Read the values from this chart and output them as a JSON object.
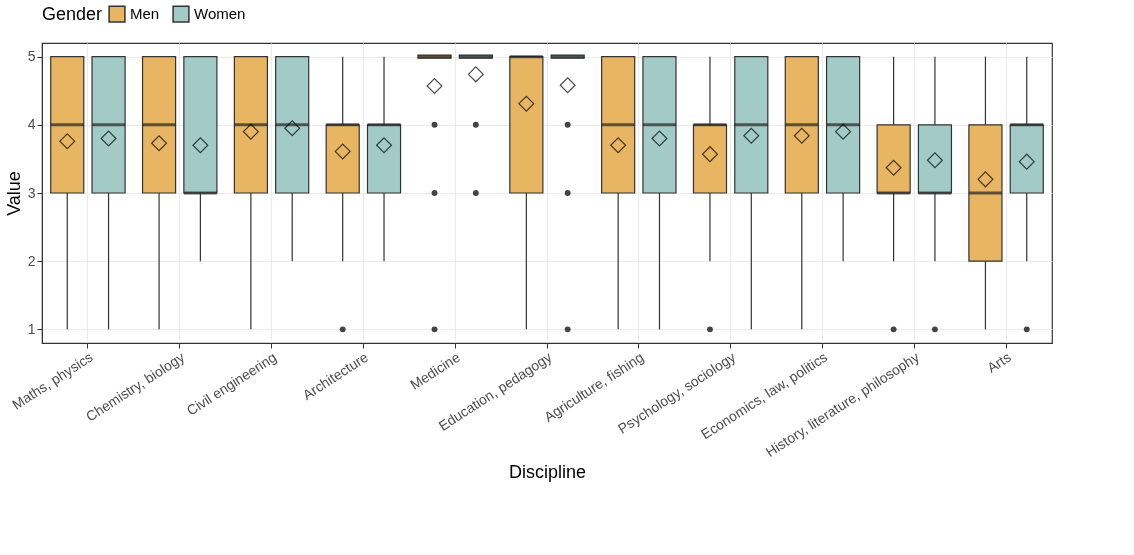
{
  "chart_data": {
    "type": "box",
    "xlabel": "Discipline",
    "ylabel": "Value",
    "legend_title": "Gender",
    "legend": "top",
    "grid": true,
    "categories": [
      "Maths, physics",
      "Chemistry, biology",
      "Civil engineering",
      "Architecture",
      "Medicine",
      "Education, pedagogy",
      "Agriculture, fishing",
      "Psychology, sociology",
      "Economics, law, politics",
      "History, literature, philosophy",
      "Arts"
    ],
    "ylim": [
      0.8,
      5.2
    ],
    "yticks": [
      1,
      2,
      3,
      4,
      5
    ],
    "series": [
      {
        "name": "Men",
        "color": "#e8b563",
        "boxes": [
          {
            "low": 1,
            "q1": 3,
            "median": 4,
            "q3": 5,
            "high": 5,
            "mean": 3.76
          },
          {
            "low": 1,
            "q1": 3,
            "median": 4,
            "q3": 5,
            "high": 5,
            "mean": 3.73
          },
          {
            "low": 1,
            "q1": 3,
            "median": 4,
            "q3": 5,
            "high": 5,
            "mean": 3.9
          },
          {
            "low": 2,
            "q1": 3,
            "median": 4,
            "q3": 4,
            "high": 5,
            "mean": 3.61,
            "outliers": [
              1
            ]
          },
          {
            "low": 5,
            "q1": 5,
            "median": 5,
            "q3": 5,
            "high": 5,
            "mean": 4.57,
            "outliers": [
              4,
              3,
              1
            ]
          },
          {
            "low": 1,
            "q1": 3,
            "median": 5,
            "q3": 5,
            "high": 5,
            "mean": 4.31
          },
          {
            "low": 1,
            "q1": 3,
            "median": 4,
            "q3": 5,
            "high": 5,
            "mean": 3.7
          },
          {
            "low": 2,
            "q1": 3,
            "median": 4,
            "q3": 4,
            "high": 5,
            "mean": 3.57,
            "outliers": [
              1
            ]
          },
          {
            "low": 1,
            "q1": 3,
            "median": 4,
            "q3": 5,
            "high": 5,
            "mean": 3.84
          },
          {
            "low": 2,
            "q1": 3,
            "median": 3,
            "q3": 4,
            "high": 5,
            "mean": 3.37,
            "outliers": [
              1
            ]
          },
          {
            "low": 1,
            "q1": 2,
            "median": 3,
            "q3": 4,
            "high": 5,
            "mean": 3.2
          }
        ]
      },
      {
        "name": "Women",
        "color": "#a2cbc8",
        "boxes": [
          {
            "low": 1,
            "q1": 3,
            "median": 4,
            "q3": 5,
            "high": 5,
            "mean": 3.8
          },
          {
            "low": 2,
            "q1": 3,
            "median": 3,
            "q3": 5,
            "high": 5,
            "mean": 3.7
          },
          {
            "low": 2,
            "q1": 3,
            "median": 4,
            "q3": 5,
            "high": 5,
            "mean": 3.95
          },
          {
            "low": 2,
            "q1": 3,
            "median": 4,
            "q3": 4,
            "high": 5,
            "mean": 3.7
          },
          {
            "low": 5,
            "q1": 5,
            "median": 5,
            "q3": 5,
            "high": 5,
            "mean": 4.74,
            "outliers": [
              4,
              3
            ]
          },
          {
            "low": 5,
            "q1": 5,
            "median": 5,
            "q3": 5,
            "high": 5,
            "mean": 4.58,
            "outliers": [
              4,
              3,
              1
            ]
          },
          {
            "low": 1,
            "q1": 3,
            "median": 4,
            "q3": 5,
            "high": 5,
            "mean": 3.8
          },
          {
            "low": 1,
            "q1": 3,
            "median": 4,
            "q3": 5,
            "high": 5,
            "mean": 3.84
          },
          {
            "low": 2,
            "q1": 3,
            "median": 4,
            "q3": 5,
            "high": 5,
            "mean": 3.9
          },
          {
            "low": 2,
            "q1": 3,
            "median": 3,
            "q3": 4,
            "high": 5,
            "mean": 3.48,
            "outliers": [
              1
            ]
          },
          {
            "low": 2,
            "q1": 3,
            "median": 4,
            "q3": 4,
            "high": 5,
            "mean": 3.46,
            "outliers": [
              1
            ]
          }
        ]
      }
    ]
  }
}
